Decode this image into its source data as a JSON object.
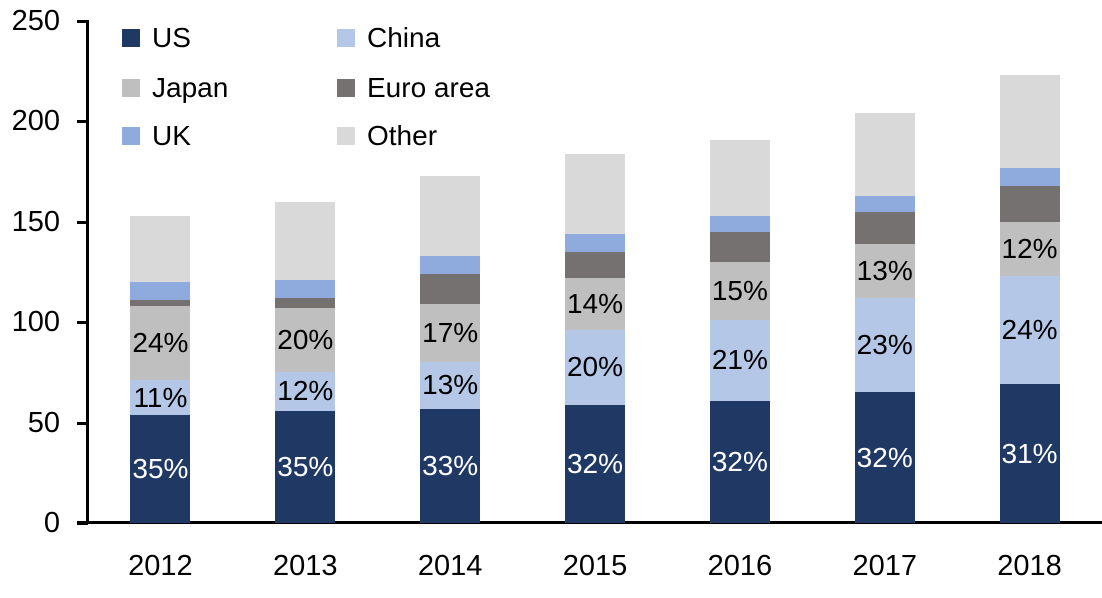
{
  "chart_data": {
    "type": "bar",
    "stacked": true,
    "title": "",
    "xlabel": "",
    "ylabel": "",
    "grid": false,
    "background": "#ffffff",
    "axis_color": "#000000",
    "ylim": [
      0,
      250
    ],
    "yticks": [
      0,
      50,
      100,
      150,
      200,
      250
    ],
    "categories": [
      "2012",
      "2013",
      "2014",
      "2015",
      "2016",
      "2017",
      "2018"
    ],
    "totals": [
      153,
      160,
      173,
      184,
      191,
      204,
      223
    ],
    "series": [
      {
        "name": "US",
        "color": "#1f3864",
        "label_color": "#ffffff",
        "values": [
          54,
          56,
          57,
          59,
          61,
          65,
          69
        ],
        "labels": [
          "35%",
          "35%",
          "33%",
          "32%",
          "32%",
          "32%",
          "31%"
        ]
      },
      {
        "name": "China",
        "color": "#b4c7e7",
        "label_color": "#000000",
        "values": [
          17,
          19,
          23,
          37,
          40,
          47,
          54
        ],
        "labels": [
          "11%",
          "12%",
          "13%",
          "20%",
          "21%",
          "23%",
          "24%"
        ]
      },
      {
        "name": "Japan",
        "color": "#bfbfbf",
        "label_color": "#000000",
        "values": [
          37,
          32,
          29,
          26,
          29,
          27,
          27
        ],
        "labels": [
          "24%",
          "20%",
          "17%",
          "14%",
          "15%",
          "13%",
          "12%"
        ]
      },
      {
        "name": "Euro area",
        "color": "#767171",
        "label_color": "#000000",
        "values": [
          3,
          5,
          15,
          13,
          15,
          16,
          18
        ],
        "labels": null
      },
      {
        "name": "UK",
        "color": "#8faadc",
        "label_color": "#000000",
        "values": [
          9,
          9,
          9,
          9,
          8,
          8,
          9
        ],
        "labels": null
      },
      {
        "name": "Other",
        "color": "#d9d9d9",
        "label_color": "#000000",
        "values": [
          33,
          39,
          40,
          40,
          38,
          41,
          46
        ],
        "labels": null
      }
    ],
    "legend": {
      "position": "top-left",
      "columns": [
        [
          "US",
          "Japan",
          "UK"
        ],
        [
          "China",
          "Euro area",
          "Other"
        ]
      ]
    }
  }
}
